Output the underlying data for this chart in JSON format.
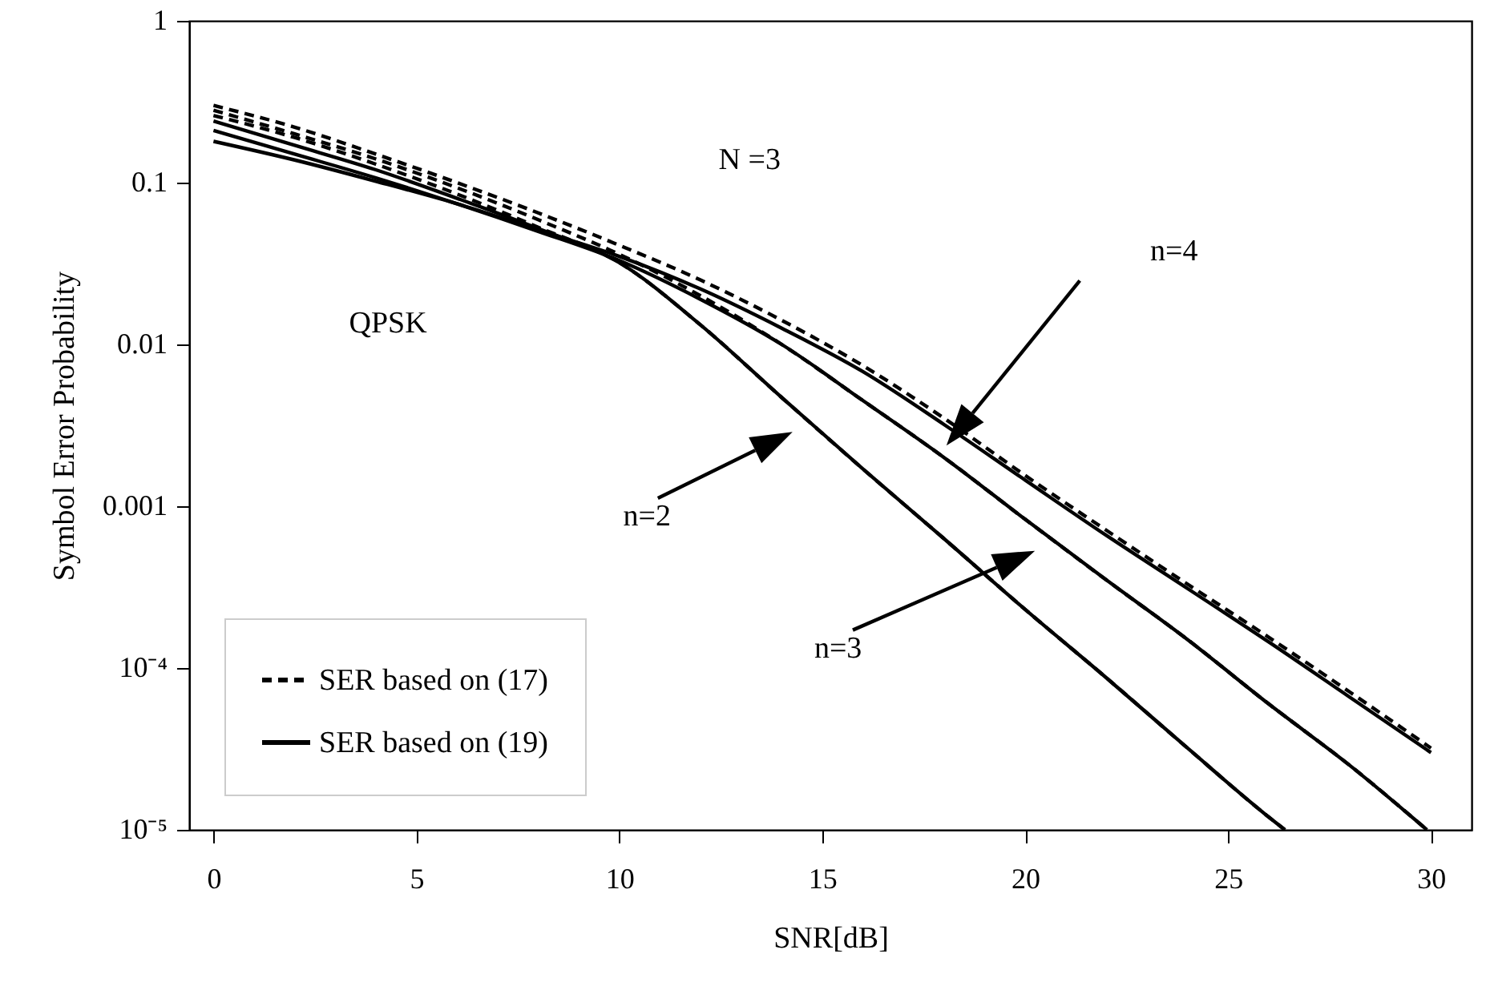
{
  "chart_data": {
    "type": "line",
    "xlabel": "SNR[dB]",
    "ylabel": "Symbol Error Probability",
    "log": "y",
    "grid": false,
    "legend": "bottom left",
    "marker": "none",
    "xlim": [
      -0.6,
      31
    ],
    "xticks": [
      0,
      5,
      10,
      15,
      20,
      25,
      30
    ],
    "ylim": [
      1e-05,
      1
    ],
    "yticks": [
      1,
      0.1,
      0.01,
      0.001,
      {
        "value": 0.0001,
        "label": "10⁻⁴"
      },
      {
        "value": 1e-05,
        "label": "10⁻⁵"
      }
    ],
    "annotations": [
      "QPSK",
      "N =3",
      "n=4",
      "n=2",
      "n=3"
    ],
    "series": [
      {
        "name": "SER based on (17)",
        "color": "#000000",
        "line_style": "dashed",
        "x": [
          0,
          2,
          4,
          6,
          8,
          10,
          12,
          14,
          16,
          18,
          20,
          22,
          24,
          26,
          26.4
        ],
        "values": [
          0.26,
          0.19,
          0.13,
          0.085,
          0.053,
          0.032,
          0.0132,
          0.0047,
          0.0017,
          0.00063,
          0.00023,
          8.7e-05,
          3.2e-05,
          1.2e-05,
          1e-05
        ]
      },
      {
        "color": "#000000",
        "line_style": "dashed",
        "x": [
          0,
          2,
          4,
          6,
          8,
          10,
          12,
          14,
          16,
          18,
          20,
          22,
          24,
          26,
          28,
          29.9
        ],
        "values": [
          0.28,
          0.2,
          0.14,
          0.093,
          0.059,
          0.036,
          0.02,
          0.01,
          0.0045,
          0.002,
          0.00083,
          0.00035,
          0.00015,
          6e-05,
          2.5e-05,
          1e-05
        ]
      },
      {
        "color": "#000000",
        "line_style": "dashed",
        "x": [
          0,
          2,
          4,
          6,
          8,
          10,
          12,
          14,
          16,
          18,
          20,
          22,
          24,
          26,
          28,
          30
        ],
        "values": [
          0.3,
          0.22,
          0.15,
          0.1,
          0.065,
          0.041,
          0.025,
          0.0141,
          0.0074,
          0.0035,
          0.00155,
          0.00071,
          0.00033,
          0.000155,
          7.1e-05,
          3.2e-05
        ]
      },
      {
        "name": "SER based on (19)",
        "color": "#000000",
        "line_style": "solid",
        "x": [
          0,
          2,
          4,
          6,
          8,
          10,
          12,
          14,
          16,
          18,
          20,
          22,
          24,
          26,
          26.4
        ],
        "values": [
          0.24,
          0.17,
          0.12,
          0.08,
          0.052,
          0.032,
          0.0132,
          0.0047,
          0.0017,
          0.00063,
          0.00023,
          8.7e-05,
          3.2e-05,
          1.2e-05,
          1e-05
        ]
      },
      {
        "color": "#000000",
        "line_style": "solid",
        "x": [
          0,
          2,
          4,
          6,
          8,
          10,
          12,
          14,
          16,
          18,
          20,
          22,
          24,
          26,
          28,
          29.9
        ],
        "values": [
          0.21,
          0.15,
          0.107,
          0.074,
          0.05,
          0.033,
          0.019,
          0.01,
          0.0045,
          0.002,
          0.00083,
          0.00035,
          0.00015,
          6e-05,
          2.5e-05,
          1e-05
        ]
      },
      {
        "color": "#000000",
        "line_style": "solid",
        "x": [
          0,
          2,
          4,
          6,
          8,
          10,
          12,
          14,
          16,
          18,
          20,
          22,
          24,
          26,
          28,
          30
        ],
        "values": [
          0.18,
          0.138,
          0.102,
          0.074,
          0.051,
          0.035,
          0.022,
          0.0126,
          0.0068,
          0.0032,
          0.00145,
          0.00066,
          0.00031,
          0.000145,
          6.6e-05,
          3e-05
        ]
      }
    ]
  }
}
